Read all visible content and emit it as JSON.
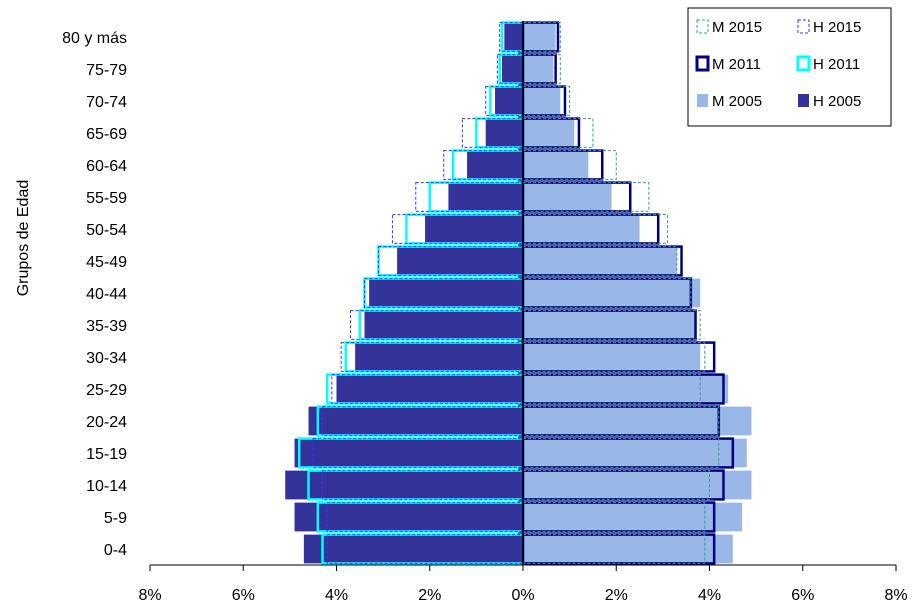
{
  "chart_data": {
    "type": "bar",
    "orientation": "horizontal-population-pyramid",
    "ylabel": "Grupos de Edad",
    "xlabel": "",
    "xlim": [
      -8,
      8
    ],
    "x_ticks": [
      "8%",
      "6%",
      "4%",
      "2%",
      "0%",
      "2%",
      "4%",
      "6%",
      "8%"
    ],
    "categories": [
      "0-4",
      "5-9",
      "10-14",
      "15-19",
      "20-24",
      "25-29",
      "30-34",
      "35-39",
      "40-44",
      "45-49",
      "50-54",
      "55-59",
      "60-64",
      "65-69",
      "70-74",
      "75-79",
      "80 y más"
    ],
    "legend_position": "top-right",
    "series": [
      {
        "name": "H 2005",
        "side": "left",
        "style": "filled-dark",
        "color": "#333399",
        "values": [
          4.7,
          4.9,
          5.1,
          4.9,
          4.6,
          4.0,
          3.6,
          3.4,
          3.3,
          2.7,
          2.1,
          1.6,
          1.2,
          0.8,
          0.6,
          0.45,
          0.4
        ]
      },
      {
        "name": "M 2005",
        "side": "right",
        "style": "filled-light",
        "color": "#99B8E8",
        "values": [
          4.5,
          4.7,
          4.9,
          4.8,
          4.9,
          4.4,
          3.8,
          3.7,
          3.8,
          3.3,
          2.5,
          1.9,
          1.4,
          1.1,
          0.8,
          0.65,
          0.7
        ]
      },
      {
        "name": "H 2011",
        "side": "left",
        "style": "outline-cyan",
        "color": "#00FFFF",
        "values": [
          4.3,
          4.4,
          4.6,
          4.8,
          4.4,
          4.2,
          3.8,
          3.5,
          3.4,
          3.1,
          2.5,
          2.0,
          1.5,
          1.0,
          0.7,
          0.5,
          0.45
        ]
      },
      {
        "name": "M 2011",
        "side": "right",
        "style": "outline-navy",
        "color": "#000080",
        "values": [
          4.1,
          4.1,
          4.3,
          4.5,
          4.2,
          4.3,
          4.1,
          3.7,
          3.6,
          3.4,
          2.9,
          2.3,
          1.7,
          1.2,
          0.9,
          0.7,
          0.75
        ]
      },
      {
        "name": "H 2015",
        "side": "left",
        "style": "dotted-blue",
        "color": "#3333FF",
        "values": [
          4.2,
          4.2,
          4.3,
          4.5,
          4.3,
          4.1,
          3.9,
          3.7,
          3.4,
          3.1,
          2.8,
          2.3,
          1.7,
          1.3,
          0.8,
          0.55,
          0.5
        ]
      },
      {
        "name": "M 2015",
        "side": "right",
        "style": "dotted-teal",
        "color": "#339999",
        "values": [
          3.9,
          3.9,
          4.0,
          4.2,
          4.2,
          3.8,
          3.9,
          3.8,
          3.6,
          3.3,
          3.1,
          2.7,
          2.0,
          1.5,
          1.0,
          0.8,
          0.8
        ]
      }
    ]
  },
  "legend": {
    "items": [
      {
        "label": "M 2015",
        "series": "M 2015"
      },
      {
        "label": "H 2015",
        "series": "H 2015"
      },
      {
        "label": "M 2011",
        "series": "M 2011"
      },
      {
        "label": "H 2011",
        "series": "H 2011"
      },
      {
        "label": "M 2005",
        "series": "M 2005"
      },
      {
        "label": "H 2005",
        "series": "H 2005"
      }
    ]
  }
}
